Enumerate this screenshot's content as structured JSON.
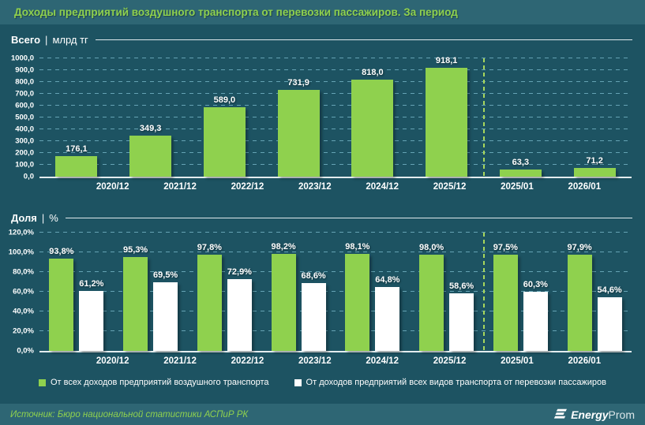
{
  "title": "Доходы предприятий воздушного транспорта от перевозки пассажиров. За период",
  "source": "Источник: Бюро национальной статистики АСПиР РК",
  "logo": {
    "bold": "Energy",
    "light": "Prom"
  },
  "colors": {
    "background": "#1d5362",
    "band": "#2e6674",
    "green": "#8fd14e",
    "white_bar": "#ffffff",
    "gridline": "#7dbecf",
    "separator": "#a8d75c"
  },
  "legend": [
    {
      "color": "#8fd14e",
      "label": "От всех доходов предприятий воздушного транспорта"
    },
    {
      "color": "#ffffff",
      "label": "От доходов предприятий всех видов транспорта от перевозки пассажиров"
    }
  ],
  "chart_data": [
    {
      "type": "bar",
      "title": "Всего",
      "unit": "млрд тг",
      "categories": [
        "2020/12",
        "2021/12",
        "2022/12",
        "2023/12",
        "2024/12",
        "2025/12",
        "2025/01",
        "2026/01"
      ],
      "values": [
        176.1,
        349.3,
        589.0,
        731.9,
        818.0,
        918.1,
        63.3,
        71.2
      ],
      "bar_color": "#8fd14e",
      "ylim": [
        0,
        1000
      ],
      "ytick_step": 100,
      "value_suffix": "",
      "grid": true,
      "separator_after_index": 5
    },
    {
      "type": "bar",
      "title": "Доля",
      "unit": "%",
      "categories": [
        "2020/12",
        "2021/12",
        "2022/12",
        "2023/12",
        "2024/12",
        "2025/12",
        "2025/01",
        "2026/01"
      ],
      "series": [
        {
          "name": "От всех доходов предприятий воздушного транспорта",
          "color": "#8fd14e",
          "values": [
            93.8,
            95.3,
            97.8,
            98.2,
            98.1,
            98.0,
            97.5,
            97.9
          ]
        },
        {
          "name": "От доходов предприятий всех видов транспорта от перевозки пассажиров",
          "color": "#ffffff",
          "values": [
            61.2,
            69.5,
            72.9,
            68.6,
            64.8,
            58.6,
            60.3,
            54.6
          ]
        }
      ],
      "ylim": [
        0,
        120
      ],
      "ytick_step": 20,
      "value_suffix": "%",
      "grid": true,
      "separator_after_index": 5
    }
  ]
}
